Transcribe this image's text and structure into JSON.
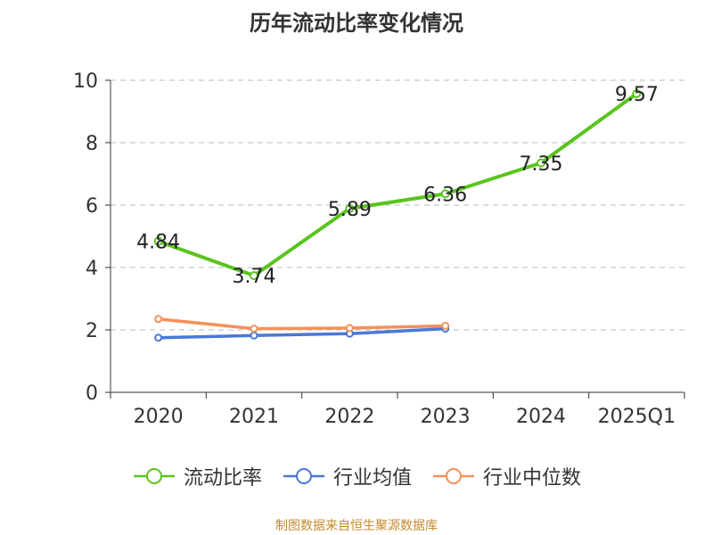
{
  "title": "历年流动比率变化情况",
  "source": "制图数据来自恒生聚源数据库",
  "colors": {
    "current_ratio": "#5ac41f",
    "industry_avg": "#4a78d6",
    "industry_median": "#f5905a",
    "axis": "#333333",
    "grid": "#bbbbbb"
  },
  "legend": [
    {
      "name": "流动比率",
      "color_key": "current_ratio"
    },
    {
      "name": "行业均值",
      "color_key": "industry_avg"
    },
    {
      "name": "行业中位数",
      "color_key": "industry_median"
    }
  ],
  "chart_data": {
    "type": "line",
    "title": "历年流动比率变化情况",
    "xlabel": "",
    "ylabel": "",
    "categories": [
      "2020",
      "2021",
      "2022",
      "2023",
      "2024",
      "2025Q1"
    ],
    "ylim": [
      0,
      10
    ],
    "yticks": [
      "0",
      "2",
      "4",
      "6",
      "8",
      "10"
    ],
    "grid": "horizontal-dashed",
    "legend_placement": "bottom",
    "series": [
      {
        "name": "流动比率",
        "values": [
          4.84,
          3.74,
          5.89,
          6.36,
          7.35,
          9.57
        ],
        "labels": [
          "4.84",
          "3.74",
          "5.89",
          "6.36",
          "7.35",
          "9.57"
        ]
      },
      {
        "name": "行业均值",
        "values": [
          1.75,
          1.82,
          1.88,
          2.04,
          null,
          null
        ]
      },
      {
        "name": "行业中位数",
        "values": [
          2.35,
          2.04,
          2.06,
          2.13,
          null,
          null
        ]
      }
    ]
  }
}
